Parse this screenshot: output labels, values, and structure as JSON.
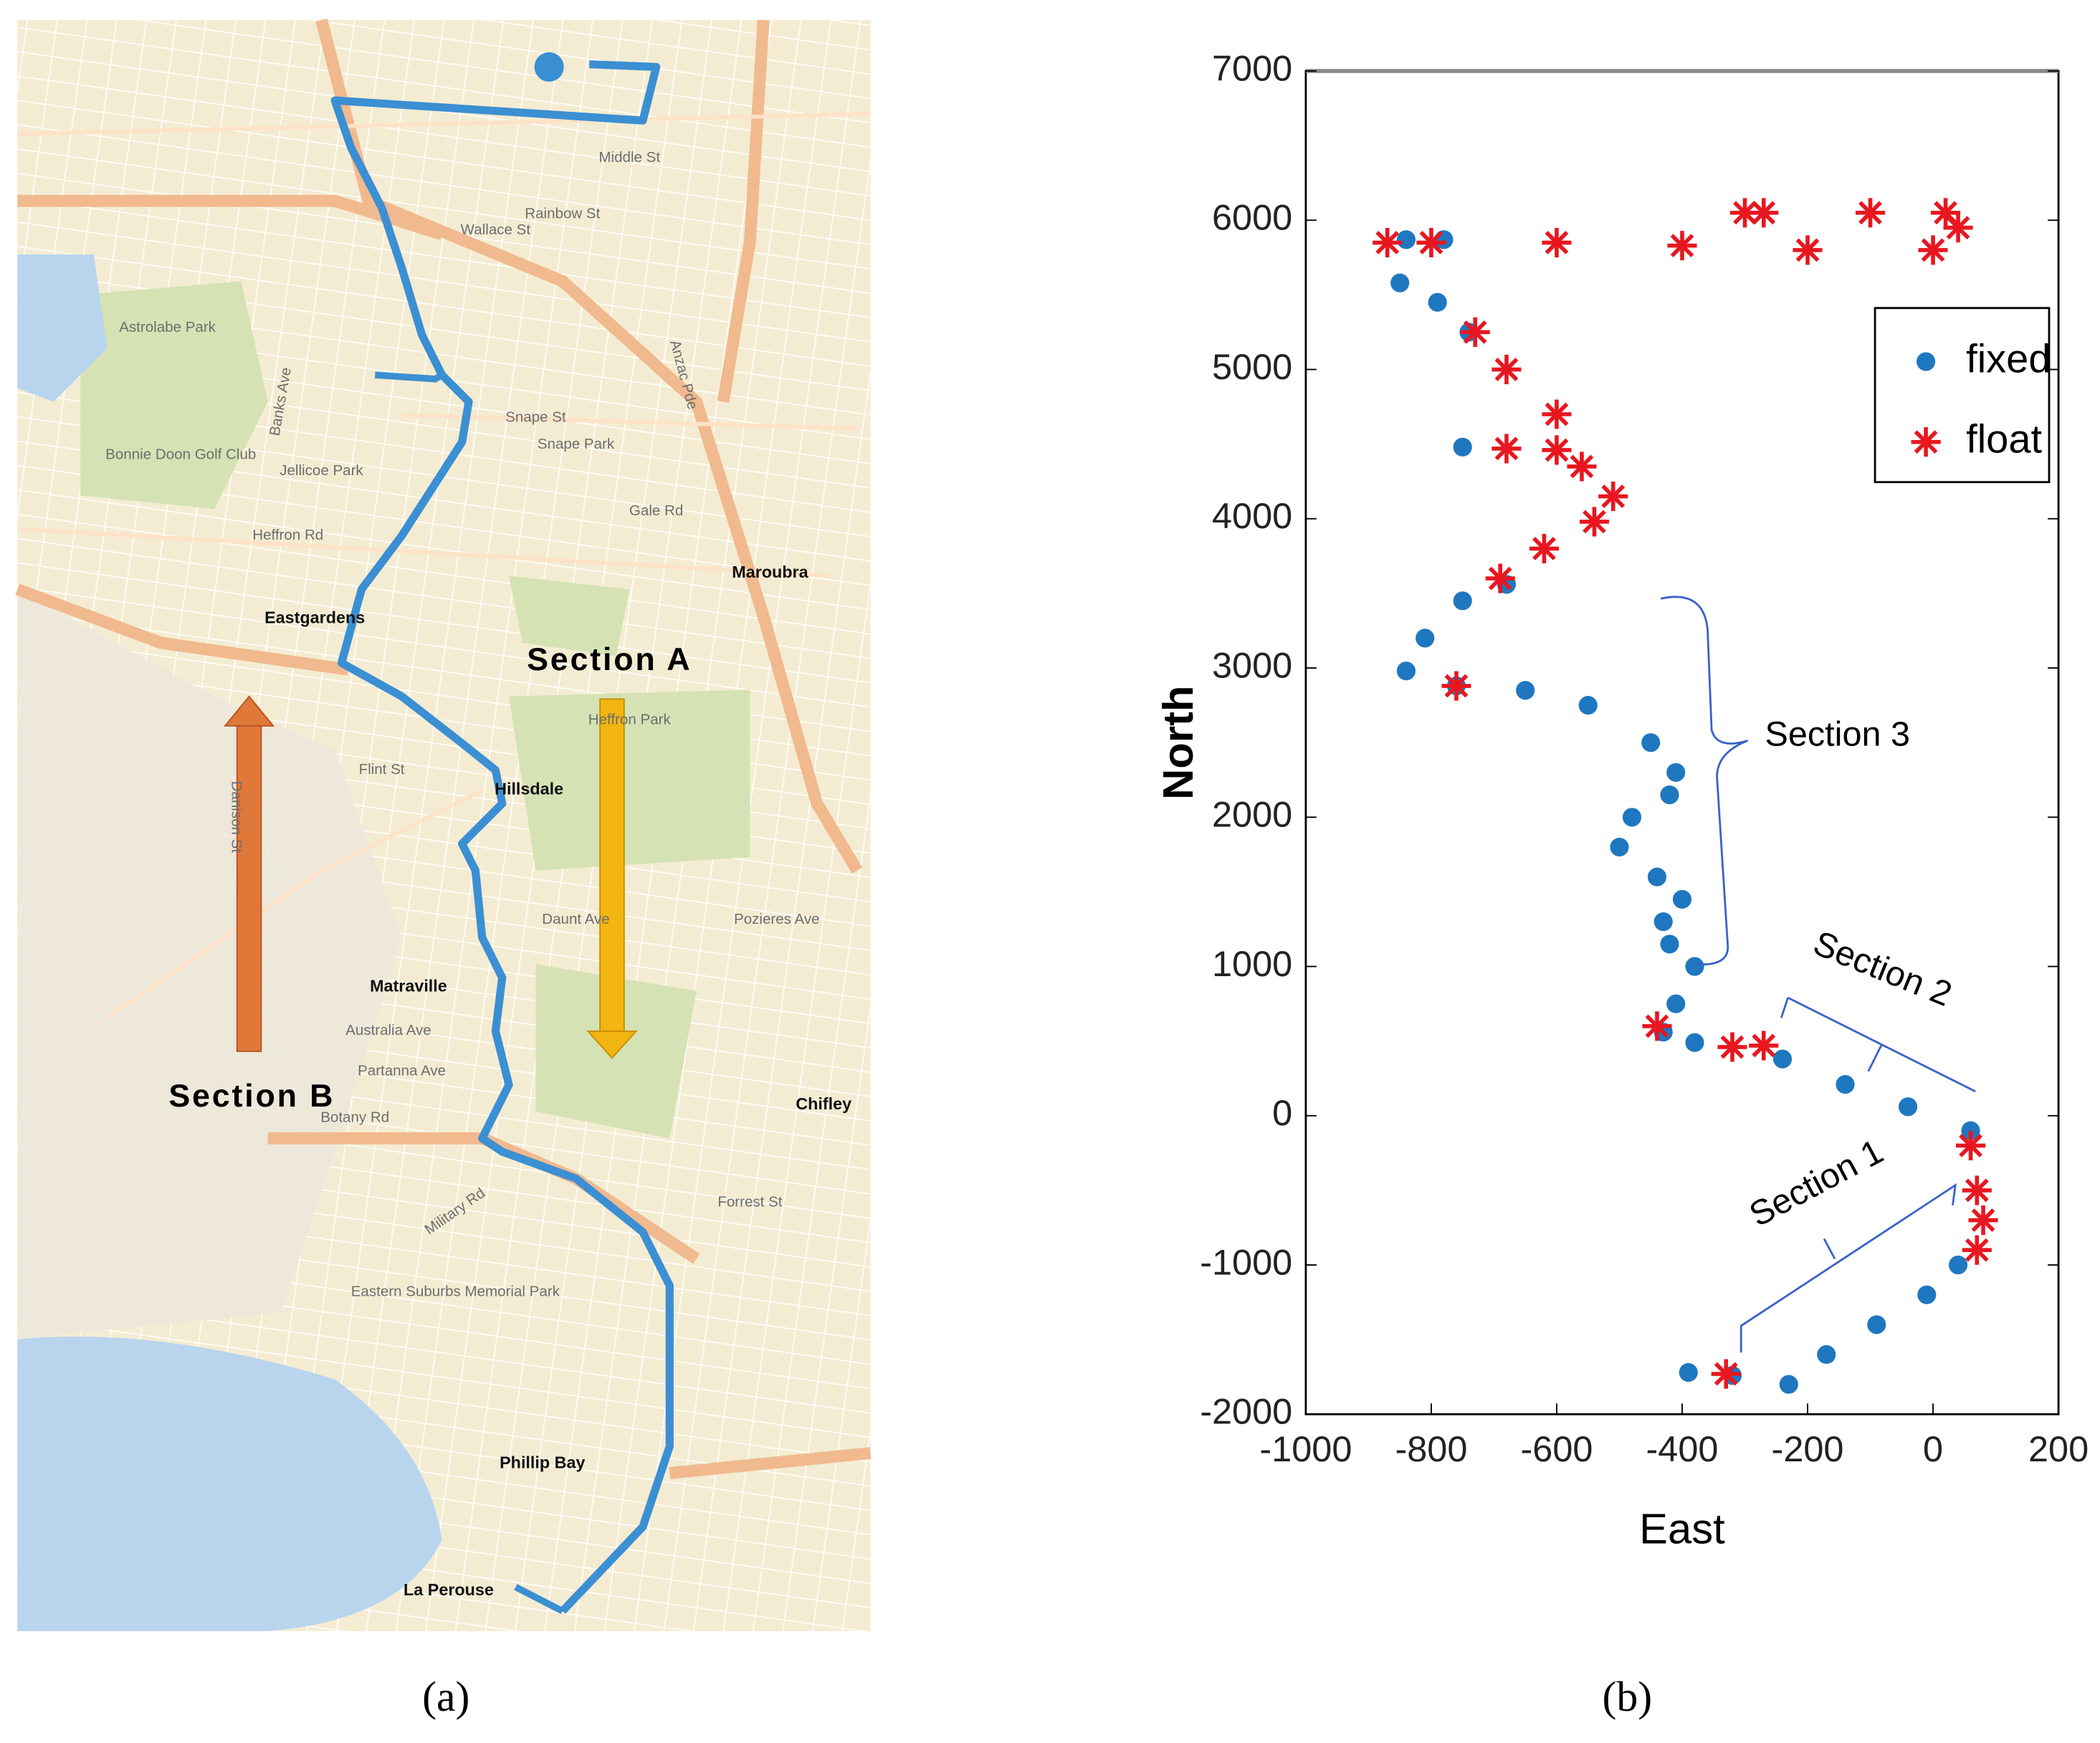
{
  "panel_labels": [
    "(a)",
    "(b)"
  ],
  "map": {
    "section_a": "Section A",
    "section_b": "Section B",
    "labels": [
      "Middle St",
      "Rainbow St",
      "Wallace St",
      "Astrolabe Park",
      "Snape St",
      "Snape Park",
      "Bonnie Doon Golf Club",
      "Jellicoe Park",
      "Gale Rd",
      "Heffron Rd",
      "Maroubra",
      "Eastgardens",
      "Heffron Park",
      "Flint St",
      "Hillsdale",
      "Daunt Ave",
      "Pozieres Ave",
      "Matraville",
      "Australia Ave",
      "Partanna Ave",
      "Botany Rd",
      "Chifley",
      "Forrest St",
      "Military Rd",
      "Eastern Suburbs Memorial Park",
      "Phillip Bay",
      "La Perouse",
      "Anzac Pde",
      "Danison St",
      "Banks Ave"
    ]
  },
  "chart_data": {
    "type": "scatter",
    "xlabel": "East",
    "ylabel": "North",
    "xlim": [
      -1000,
      200
    ],
    "ylim": [
      -2000,
      7000
    ],
    "xticks": [
      -1000,
      -800,
      -600,
      -400,
      -200,
      0,
      200
    ],
    "yticks": [
      -2000,
      -1000,
      0,
      1000,
      2000,
      3000,
      4000,
      5000,
      6000,
      7000
    ],
    "legend": "upper right",
    "series": [
      {
        "name": "fixed",
        "color": "#1f77c0",
        "marker": "dot",
        "x": [
          -390,
          -320,
          -230,
          -170,
          -90,
          -10,
          40,
          60,
          -40,
          -140,
          -240,
          -380,
          -430,
          -410,
          -380,
          -420,
          -430,
          -400,
          -440,
          -500,
          -480,
          -420,
          -410,
          -450,
          -550,
          -650,
          -760,
          -840,
          -810,
          -750,
          -680,
          -750,
          -740,
          -790,
          -850,
          -840,
          -780
        ],
        "values": [
          -1720,
          -1740,
          -1800,
          -1600,
          -1400,
          -1200,
          -1000,
          -100,
          60,
          210,
          380,
          490,
          560,
          750,
          1000,
          1150,
          1300,
          1450,
          1600,
          1800,
          2000,
          2150,
          2300,
          2500,
          2750,
          2850,
          2880,
          2980,
          3200,
          3450,
          3560,
          4480,
          5250,
          5450,
          5580,
          5870,
          5870
        ]
      },
      {
        "name": "float",
        "color": "#e8171f",
        "marker": "asterisk",
        "x": [
          -330,
          70,
          80,
          70,
          60,
          -270,
          -320,
          -440,
          -760,
          -690,
          -620,
          -540,
          -510,
          -560,
          -600,
          -680,
          -600,
          -680,
          -730,
          -870,
          -800,
          -600,
          -400,
          -200,
          0,
          40,
          20,
          -100,
          -270,
          -300
        ],
        "values": [
          -1730,
          -900,
          -700,
          -500,
          -200,
          470,
          460,
          600,
          2880,
          3600,
          3800,
          3980,
          4150,
          4350,
          4460,
          4470,
          4700,
          5000,
          5250,
          5850,
          5850,
          5850,
          5830,
          5800,
          5800,
          5950,
          6050,
          6050,
          6050,
          6050
        ]
      }
    ],
    "annotations": [
      "Section 3",
      "Section 2",
      "Section 1"
    ]
  }
}
